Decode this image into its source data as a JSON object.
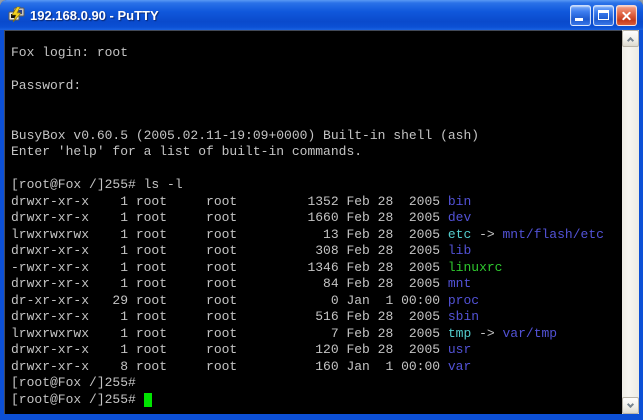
{
  "window": {
    "title": "192.168.0.90 - PuTTY",
    "app_icon": "putty-two-computers-icon",
    "controls": {
      "minimize": "minimize",
      "maximize": "maximize",
      "close": "close"
    }
  },
  "colors": {
    "titlebar_blue": "#0B50D4",
    "border_blue": "#0C50D6",
    "close_button_red": "#C63C1D",
    "terminal_bg": "#000000",
    "terminal_fg": "#C4C4C4",
    "directory_blue": "#5252D6",
    "symlink_cyan": "#53CCCC",
    "executable_green": "#2EC82E",
    "cursor_green": "#00E400"
  },
  "scrollbar": {
    "up_icon": "chevron-up",
    "down_icon": "chevron-down"
  },
  "terminal": {
    "colors": {
      "fg": "#C4C4C4",
      "dir": "#5252D6",
      "symlink": "#53CCCC",
      "exec": "#2EC82E",
      "cursor": "#00E400"
    },
    "lines": [
      [
        {
          "t": "Fox login: root",
          "c": "fg"
        }
      ],
      [],
      [
        {
          "t": "Password:",
          "c": "fg"
        }
      ],
      [],
      [],
      [
        {
          "t": "BusyBox v0.60.5 (2005.02.11-19:09+0000) Built-in shell (ash)",
          "c": "fg"
        }
      ],
      [
        {
          "t": "Enter 'help' for a list of built-in commands.",
          "c": "fg"
        }
      ],
      [],
      [
        {
          "t": "[root@Fox /]255# ls -l",
          "c": "fg"
        }
      ],
      [
        {
          "t": "drwxr-xr-x    1 root     root         1352 Feb 28  2005 ",
          "c": "fg"
        },
        {
          "t": "bin",
          "c": "dir"
        }
      ],
      [
        {
          "t": "drwxr-xr-x    1 root     root         1660 Feb 28  2005 ",
          "c": "fg"
        },
        {
          "t": "dev",
          "c": "dir"
        }
      ],
      [
        {
          "t": "lrwxrwxrwx    1 root     root           13 Feb 28  2005 ",
          "c": "fg"
        },
        {
          "t": "etc",
          "c": "symlink"
        },
        {
          "t": " -> ",
          "c": "fg"
        },
        {
          "t": "mnt/flash/etc",
          "c": "dir"
        }
      ],
      [
        {
          "t": "drwxr-xr-x    1 root     root          308 Feb 28  2005 ",
          "c": "fg"
        },
        {
          "t": "lib",
          "c": "dir"
        }
      ],
      [
        {
          "t": "-rwxr-xr-x    1 root     root         1346 Feb 28  2005 ",
          "c": "fg"
        },
        {
          "t": "linuxrc",
          "c": "exec"
        }
      ],
      [
        {
          "t": "drwxr-xr-x    1 root     root           84 Feb 28  2005 ",
          "c": "fg"
        },
        {
          "t": "mnt",
          "c": "dir"
        }
      ],
      [
        {
          "t": "dr-xr-xr-x   29 root     root            0 Jan  1 00:00 ",
          "c": "fg"
        },
        {
          "t": "proc",
          "c": "dir"
        }
      ],
      [
        {
          "t": "drwxr-xr-x    1 root     root          516 Feb 28  2005 ",
          "c": "fg"
        },
        {
          "t": "sbin",
          "c": "dir"
        }
      ],
      [
        {
          "t": "lrwxrwxrwx    1 root     root            7 Feb 28  2005 ",
          "c": "fg"
        },
        {
          "t": "tmp",
          "c": "symlink"
        },
        {
          "t": " -> ",
          "c": "fg"
        },
        {
          "t": "var/tmp",
          "c": "dir"
        }
      ],
      [
        {
          "t": "drwxr-xr-x    1 root     root          120 Feb 28  2005 ",
          "c": "fg"
        },
        {
          "t": "usr",
          "c": "dir"
        }
      ],
      [
        {
          "t": "drwxr-xr-x    8 root     root          160 Jan  1 00:00 ",
          "c": "fg"
        },
        {
          "t": "var",
          "c": "dir"
        }
      ],
      [
        {
          "t": "[root@Fox /]255#",
          "c": "fg"
        }
      ],
      [
        {
          "t": "[root@Fox /]255# ",
          "c": "fg"
        },
        {
          "t": " ",
          "c": "cursor"
        }
      ]
    ]
  }
}
